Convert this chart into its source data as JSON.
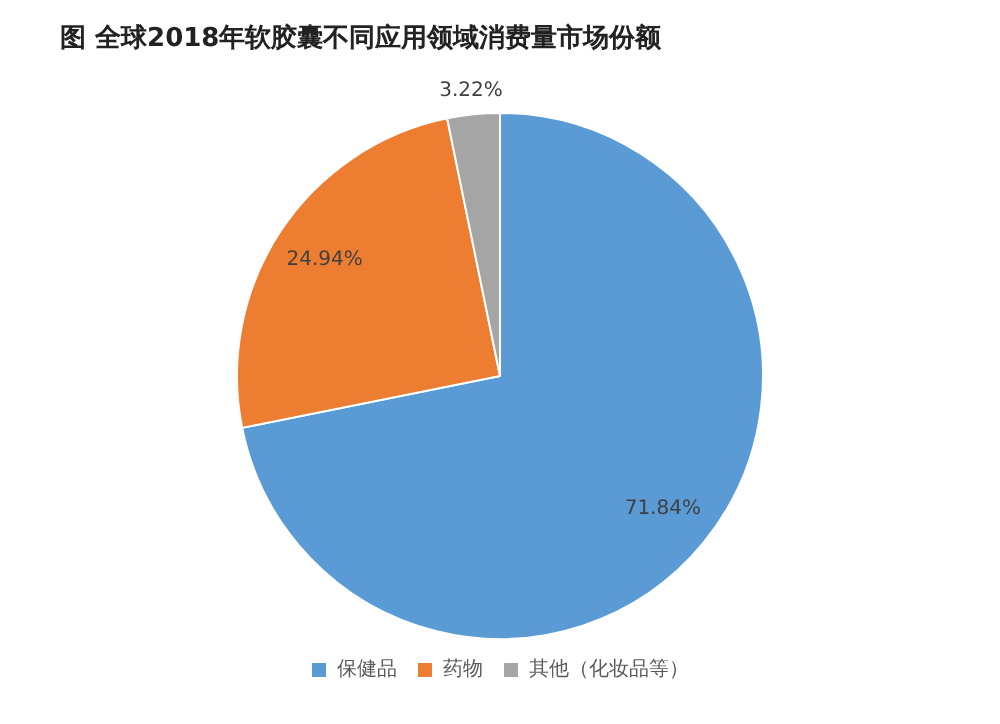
{
  "chart_data": {
    "type": "pie",
    "title": "图  全球2018年软胶囊不同应用领域消费量市场份额",
    "categories": [
      "保健品",
      "药物",
      "其他（化妆品等）"
    ],
    "values": [
      71.84,
      24.94,
      3.22
    ],
    "colors": [
      "#5b9bd5",
      "#ed7d31",
      "#a5a5a5"
    ],
    "value_labels": [
      "71.84%",
      "24.94%",
      "3.22%"
    ],
    "legend": "bottom"
  }
}
